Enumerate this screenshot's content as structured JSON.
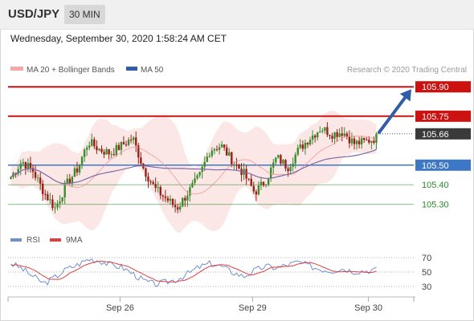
{
  "header": {
    "symbol": "USD/JPY",
    "timeframe": "30 MIN"
  },
  "timestamp": "Wednesday, September 30, 2020 1:58:24 AM CET",
  "legend": {
    "ma20_label": "MA 20 + Bollinger Bands",
    "ma50_label": "MA 50",
    "copyright": "Research © 2020 Trading Central"
  },
  "rsi_legend": {
    "rsi_label": "RSI",
    "ma9_label": "9MA"
  },
  "colors": {
    "candle_up": "#3a8c2e",
    "candle_down": "#9a1f14",
    "resistance": "#cc1111",
    "pivot": "#3d78c7",
    "support": "#2b8a2b",
    "ma20_bands": "#f6a8a8",
    "ma50": "#7b6ba8",
    "arrow": "#2f5ea6",
    "rsi": "#6f8fd0",
    "rsi_ma": "#e04040"
  },
  "chart_data": {
    "type": "candlestick",
    "symbol": "USD/JPY",
    "timeframe": "30 MIN",
    "ylim": [
      105.2,
      105.95
    ],
    "x_tick_labels": [
      "Sep 26",
      "Sep 29",
      "Sep 30"
    ],
    "levels": [
      {
        "label": "105.90",
        "value": 105.9,
        "kind": "target"
      },
      {
        "label": "105.75",
        "value": 105.75,
        "kind": "resistance"
      },
      {
        "label": "105.66",
        "value": 105.66,
        "kind": "last"
      },
      {
        "label": "105.50",
        "value": 105.5,
        "kind": "pivot"
      },
      {
        "label": "105.40",
        "value": 105.4,
        "kind": "support"
      },
      {
        "label": "105.30",
        "value": 105.3,
        "kind": "support"
      }
    ],
    "trend_arrow": {
      "from": 105.66,
      "to": 105.9
    },
    "candle_anchors": [
      105.44,
      105.52,
      105.47,
      105.36,
      105.28,
      105.4,
      105.48,
      105.62,
      105.58,
      105.56,
      105.6,
      105.64,
      105.48,
      105.38,
      105.33,
      105.28,
      105.36,
      105.44,
      105.58,
      105.6,
      105.52,
      105.46,
      105.36,
      105.42,
      105.54,
      105.49,
      105.58,
      105.64,
      105.69,
      105.66,
      105.67,
      105.61,
      105.62,
      105.64
    ],
    "rsi": {
      "ylim": [
        20,
        80
      ],
      "tick_labels": [
        "70",
        "50",
        "30"
      ],
      "tick_values": [
        70,
        50,
        30
      ],
      "anchors": [
        62,
        55,
        44,
        34,
        43,
        54,
        60,
        68,
        66,
        60,
        57,
        48,
        38,
        33,
        36,
        40,
        48,
        57,
        62,
        58,
        50,
        44,
        52,
        58,
        56,
        60,
        64,
        58,
        54,
        52,
        55,
        51,
        52,
        53
      ]
    }
  }
}
